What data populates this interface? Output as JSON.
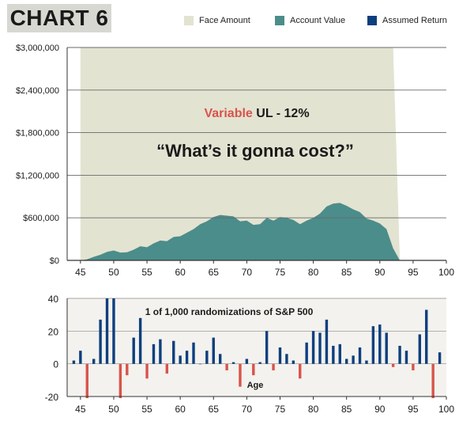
{
  "title": "CHART 6",
  "legend": {
    "face_amount": "Face Amount",
    "account_value": "Account Value",
    "assumed_return": "Assumed Return"
  },
  "colors": {
    "face_amount": "#e3e3d2",
    "account_value": "#4b8d8a",
    "assumed_return": "#0d3f7e",
    "negative_return": "#d9534b",
    "annotation_red": "#d9534b",
    "axis_text": "#1a1a1a",
    "lower_panel_bg": "#f3f2ee"
  },
  "chart_data": [
    {
      "type": "area",
      "annotations": {
        "title_red": "Variable",
        "title_rest": " UL - 12%",
        "quote": "“What’s it gonna cost?”"
      },
      "xlim": [
        43,
        100
      ],
      "ylim": [
        0,
        3000000
      ],
      "x_ticks": [
        45,
        50,
        55,
        60,
        65,
        70,
        75,
        80,
        85,
        90,
        95,
        100
      ],
      "y_ticks": [
        0,
        600000,
        1200000,
        1800000,
        2400000,
        3000000
      ],
      "y_tick_labels": [
        "$0",
        "$600,000",
        "$1,200,000",
        "$1,800,000",
        "$2,400,000",
        "$3,000,000"
      ],
      "grid": "horizontal",
      "series": [
        {
          "name": "Face Amount",
          "x": [
            45,
            92,
            93,
            93
          ],
          "y": [
            3000000,
            3000000,
            30000,
            0
          ]
        },
        {
          "name": "Account Value",
          "x": [
            45,
            46,
            47,
            48,
            49,
            50,
            51,
            52,
            53,
            54,
            55,
            56,
            57,
            58,
            59,
            60,
            61,
            62,
            63,
            64,
            65,
            66,
            67,
            68,
            69,
            70,
            71,
            72,
            73,
            74,
            75,
            76,
            77,
            78,
            79,
            80,
            81,
            82,
            83,
            84,
            85,
            86,
            87,
            88,
            89,
            90,
            91,
            92,
            93
          ],
          "y": [
            0,
            15000,
            50000,
            80000,
            120000,
            140000,
            110000,
            115000,
            150000,
            200000,
            185000,
            240000,
            280000,
            270000,
            330000,
            340000,
            390000,
            440000,
            510000,
            550000,
            610000,
            640000,
            630000,
            620000,
            550000,
            560000,
            500000,
            510000,
            600000,
            560000,
            610000,
            600000,
            570000,
            510000,
            560000,
            600000,
            660000,
            760000,
            800000,
            810000,
            770000,
            720000,
            680000,
            590000,
            560000,
            520000,
            440000,
            170000,
            0
          ]
        }
      ]
    },
    {
      "type": "bar",
      "annotations": {
        "title": "1 of 1,000 randomizations of S&P 500",
        "xlabel": "Age"
      },
      "xlim": [
        43,
        100
      ],
      "ylim": [
        -20,
        40
      ],
      "x_ticks": [
        45,
        50,
        55,
        60,
        65,
        70,
        75,
        80,
        85,
        90,
        95,
        100
      ],
      "y_ticks": [
        -20,
        0,
        20,
        40
      ],
      "grid": "horizontal",
      "series": [
        {
          "name": "Assumed Return",
          "x": [
            44,
            45,
            46,
            47,
            48,
            49,
            50,
            51,
            52,
            53,
            54,
            55,
            56,
            57,
            58,
            59,
            60,
            61,
            62,
            63,
            64,
            65,
            66,
            67,
            68,
            69,
            70,
            71,
            72,
            73,
            74,
            75,
            76,
            77,
            78,
            79,
            80,
            81,
            82,
            83,
            84,
            85,
            86,
            87,
            88,
            89,
            90,
            91,
            92,
            93,
            94,
            95,
            96,
            97,
            98,
            99
          ],
          "values": [
            2,
            8,
            -21,
            3,
            27,
            40,
            40,
            -21,
            -7,
            16,
            28,
            -9,
            12,
            15,
            -6,
            14,
            5,
            8,
            13,
            0,
            8,
            16,
            6,
            -4,
            1,
            -14,
            3,
            -7,
            1,
            20,
            -4,
            10,
            6,
            2,
            -9,
            13,
            20,
            19,
            27,
            11,
            12,
            3,
            5,
            10,
            2,
            23,
            24,
            19,
            -2,
            11,
            8,
            -4,
            18,
            33,
            -21,
            7
          ]
        }
      ]
    }
  ]
}
